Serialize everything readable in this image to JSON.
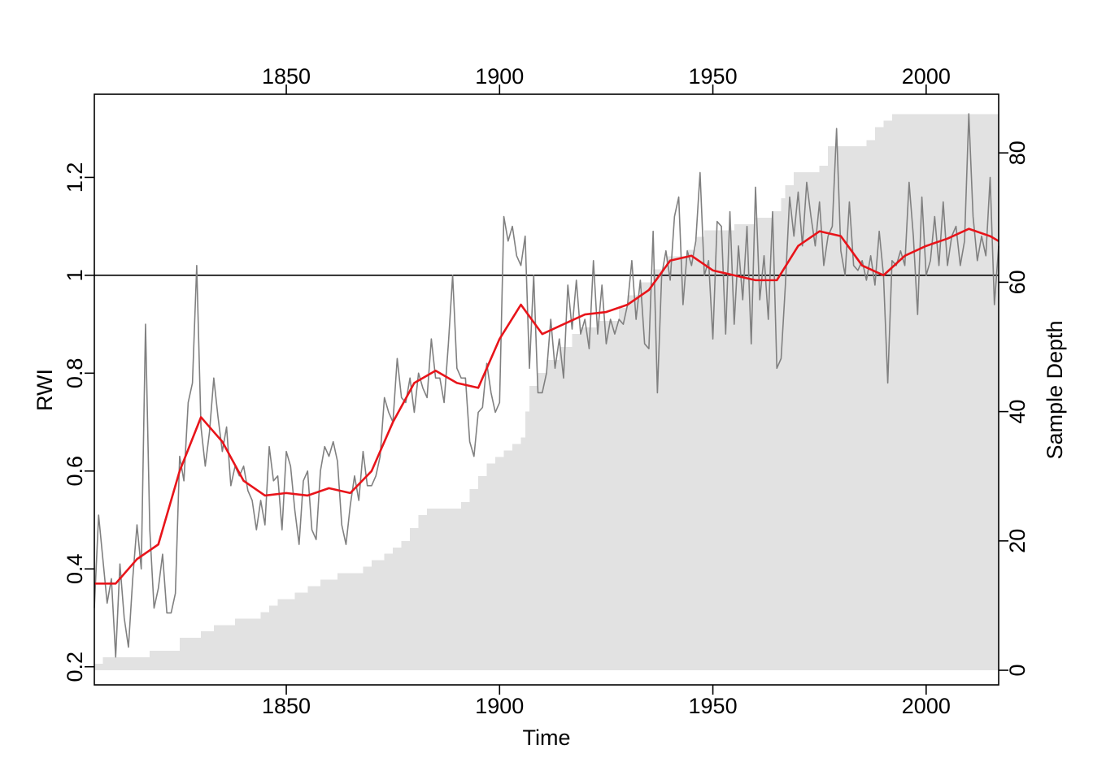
{
  "chart_data": {
    "type": "line",
    "x_label": "Time",
    "y_label": "RWI",
    "y2_label": "Sample Depth",
    "xlim": [
      1805,
      2017
    ],
    "xticks": [
      1850,
      1900,
      1950,
      2000
    ],
    "ylim": [
      0.163,
      1.37
    ],
    "yticks": [
      0.2,
      0.4,
      0.6,
      0.8,
      1.0,
      1.2
    ],
    "y2lim": [
      -2.26,
      89.07
    ],
    "y2ticks": [
      0,
      20,
      40,
      60,
      80
    ],
    "reference_line": 1,
    "x": [
      1805,
      1806,
      1807,
      1808,
      1809,
      1810,
      1811,
      1812,
      1813,
      1814,
      1815,
      1816,
      1817,
      1818,
      1819,
      1820,
      1821,
      1822,
      1823,
      1824,
      1825,
      1826,
      1827,
      1828,
      1829,
      1830,
      1831,
      1832,
      1833,
      1834,
      1835,
      1836,
      1837,
      1838,
      1839,
      1840,
      1841,
      1842,
      1843,
      1844,
      1845,
      1846,
      1847,
      1848,
      1849,
      1850,
      1851,
      1852,
      1853,
      1854,
      1855,
      1856,
      1857,
      1858,
      1859,
      1860,
      1861,
      1862,
      1863,
      1864,
      1865,
      1866,
      1867,
      1868,
      1869,
      1870,
      1871,
      1872,
      1873,
      1874,
      1875,
      1876,
      1877,
      1878,
      1879,
      1880,
      1881,
      1882,
      1883,
      1884,
      1885,
      1886,
      1887,
      1888,
      1889,
      1890,
      1891,
      1892,
      1893,
      1894,
      1895,
      1896,
      1897,
      1898,
      1899,
      1900,
      1901,
      1902,
      1903,
      1904,
      1905,
      1906,
      1907,
      1908,
      1909,
      1910,
      1911,
      1912,
      1913,
      1914,
      1915,
      1916,
      1917,
      1918,
      1919,
      1920,
      1921,
      1922,
      1923,
      1924,
      1925,
      1926,
      1927,
      1928,
      1929,
      1930,
      1931,
      1932,
      1933,
      1934,
      1935,
      1936,
      1937,
      1938,
      1939,
      1940,
      1941,
      1942,
      1943,
      1944,
      1945,
      1946,
      1947,
      1948,
      1949,
      1950,
      1951,
      1952,
      1953,
      1954,
      1955,
      1956,
      1957,
      1958,
      1959,
      1960,
      1961,
      1962,
      1963,
      1964,
      1965,
      1966,
      1967,
      1968,
      1969,
      1970,
      1971,
      1972,
      1973,
      1974,
      1975,
      1976,
      1977,
      1978,
      1979,
      1980,
      1981,
      1982,
      1983,
      1984,
      1985,
      1986,
      1987,
      1988,
      1989,
      1990,
      1991,
      1992,
      1993,
      1994,
      1995,
      1996,
      1997,
      1998,
      1999,
      2000,
      2001,
      2002,
      2003,
      2004,
      2005,
      2006,
      2007,
      2008,
      2009,
      2010,
      2011,
      2012,
      2013,
      2014,
      2015,
      2016,
      2017
    ],
    "series": [
      {
        "color": "#808080",
        "values": [
          0.32,
          0.51,
          0.42,
          0.33,
          0.38,
          0.22,
          0.41,
          0.3,
          0.24,
          0.38,
          0.49,
          0.4,
          0.9,
          0.48,
          0.32,
          0.36,
          0.43,
          0.31,
          0.31,
          0.35,
          0.63,
          0.58,
          0.74,
          0.78,
          1.02,
          0.69,
          0.61,
          0.68,
          0.79,
          0.71,
          0.64,
          0.69,
          0.57,
          0.61,
          0.59,
          0.61,
          0.56,
          0.54,
          0.48,
          0.54,
          0.49,
          0.65,
          0.58,
          0.59,
          0.48,
          0.64,
          0.61,
          0.52,
          0.45,
          0.58,
          0.6,
          0.48,
          0.46,
          0.6,
          0.65,
          0.63,
          0.66,
          0.62,
          0.49,
          0.45,
          0.53,
          0.59,
          0.54,
          0.64,
          0.57,
          0.57,
          0.59,
          0.63,
          0.75,
          0.72,
          0.7,
          0.83,
          0.75,
          0.74,
          0.79,
          0.72,
          0.8,
          0.77,
          0.75,
          0.87,
          0.79,
          0.79,
          0.74,
          0.86,
          1.0,
          0.81,
          0.79,
          0.79,
          0.66,
          0.63,
          0.72,
          0.73,
          0.82,
          0.76,
          0.72,
          0.74,
          1.12,
          1.07,
          1.1,
          1.04,
          1.02,
          1.08,
          0.81,
          1.0,
          0.76,
          0.76,
          0.8,
          0.91,
          0.81,
          0.87,
          0.79,
          0.98,
          0.89,
          0.99,
          0.88,
          0.91,
          0.85,
          1.03,
          0.88,
          0.98,
          0.86,
          0.91,
          0.88,
          0.91,
          0.9,
          0.94,
          1.03,
          0.91,
          0.99,
          0.86,
          0.85,
          1.09,
          0.76,
          1.0,
          1.05,
          0.99,
          1.12,
          1.16,
          0.94,
          1.05,
          1.02,
          1.07,
          1.21,
          1.0,
          1.03,
          0.87,
          1.11,
          1.1,
          0.88,
          1.13,
          0.9,
          1.06,
          0.95,
          1.1,
          0.86,
          1.18,
          0.95,
          1.04,
          0.91,
          1.13,
          0.81,
          0.83,
          0.98,
          1.16,
          1.08,
          1.17,
          1.06,
          1.19,
          1.12,
          1.06,
          1.15,
          1.02,
          1.08,
          1.1,
          1.3,
          1.05,
          1.0,
          1.15,
          1.02,
          1.01,
          1.03,
          0.99,
          1.04,
          0.98,
          1.09,
          1.0,
          0.78,
          1.03,
          1.02,
          1.05,
          1.02,
          1.19,
          1.08,
          0.92,
          1.16,
          1.0,
          1.03,
          1.12,
          1.02,
          1.15,
          1.02,
          1.08,
          1.1,
          1.02,
          1.07,
          1.33,
          1.12,
          1.03,
          1.08,
          1.04,
          1.2,
          0.94,
          1.06
        ]
      },
      {
        "color": "#e8141a",
        "x": [
          1805,
          1810,
          1815,
          1820,
          1825,
          1830,
          1835,
          1840,
          1845,
          1850,
          1855,
          1860,
          1865,
          1870,
          1875,
          1880,
          1885,
          1890,
          1895,
          1900,
          1905,
          1910,
          1915,
          1920,
          1925,
          1930,
          1935,
          1940,
          1945,
          1950,
          1955,
          1960,
          1965,
          1970,
          1975,
          1980,
          1985,
          1990,
          1995,
          2000,
          2005,
          2010,
          2015,
          2017
        ],
        "values": [
          0.37,
          0.37,
          0.42,
          0.45,
          0.6,
          0.71,
          0.66,
          0.58,
          0.55,
          0.555,
          0.55,
          0.565,
          0.555,
          0.6,
          0.7,
          0.78,
          0.805,
          0.78,
          0.77,
          0.87,
          0.94,
          0.88,
          0.9,
          0.92,
          0.925,
          0.94,
          0.97,
          1.03,
          1.04,
          1.01,
          1.0,
          0.99,
          0.99,
          1.06,
          1.09,
          1.08,
          1.02,
          1.0,
          1.04,
          1.06,
          1.075,
          1.095,
          1.08,
          1.07
        ]
      },
      {
        "color": "#e2e2e2",
        "axis": "y2",
        "kind": "step-area",
        "x": [
          1805,
          1807,
          1818,
          1825,
          1830,
          1833,
          1838,
          1844,
          1846,
          1848,
          1852,
          1855,
          1858,
          1862,
          1868,
          1870,
          1873,
          1875,
          1877,
          1879,
          1881,
          1883,
          1891,
          1893,
          1895,
          1897,
          1899,
          1901,
          1903,
          1905,
          1906,
          1907,
          1909,
          1911,
          1914,
          1917,
          1919,
          1923,
          1928,
          1930,
          1933,
          1936,
          1939,
          1944,
          1946,
          1948,
          1955,
          1960,
          1964,
          1966,
          1967,
          1969,
          1975,
          1977,
          1986,
          1988,
          1990,
          1992
        ],
        "values": [
          1,
          2,
          3,
          5,
          6,
          7,
          8,
          9,
          10,
          11,
          12,
          13,
          14,
          15,
          16,
          17,
          18,
          19,
          20,
          22,
          24,
          25,
          26,
          28,
          30,
          32,
          33,
          34,
          35,
          36,
          40,
          44,
          46,
          48,
          50,
          52,
          53,
          54,
          56,
          58,
          60,
          62,
          64,
          65,
          67,
          68,
          69,
          70,
          71,
          73,
          75,
          77,
          78,
          81,
          82,
          84,
          85,
          86
        ]
      }
    ]
  }
}
